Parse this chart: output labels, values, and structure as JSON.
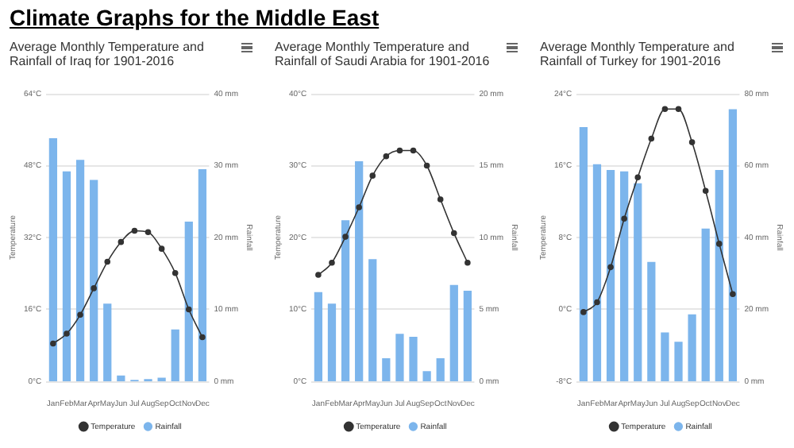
{
  "chart_data": [
    {
      "type": "other",
      "title": "Climate Graphs for the Middle East"
    },
    {
      "type": "bar",
      "title": "Average Monthly Temperature and Rainfall of Iraq for 1901-2016",
      "ylabel": "Temperature",
      "y2label": "Rainfall",
      "categories": [
        "Jan",
        "Feb",
        "Mar",
        "Apr",
        "May",
        "Jun",
        "Jul",
        "Aug",
        "Sep",
        "Oct",
        "Nov",
        "Dec"
      ],
      "series": [
        {
          "name": "Rainfall",
          "type": "bar",
          "axis": "y2",
          "color": "#7cb5ec",
          "values": [
            33.8,
            29.2,
            30.8,
            28,
            10.8,
            0.8,
            0.2,
            0.3,
            0.5,
            7.2,
            22.2,
            29.5
          ]
        },
        {
          "name": "Temperature",
          "type": "line",
          "axis": "y",
          "color": "#333333",
          "values": [
            8.4,
            10.6,
            14.8,
            20.7,
            26.6,
            31,
            33.5,
            33.2,
            29.5,
            24.1,
            16,
            9.8
          ]
        }
      ],
      "ylim": [
        0,
        64
      ],
      "yticks": [
        {
          "value": 0,
          "label": "0°C"
        },
        {
          "value": 16,
          "label": "16°C"
        },
        {
          "value": 32,
          "label": "32°C"
        },
        {
          "value": 48,
          "label": "48°C"
        },
        {
          "value": 64,
          "label": "64°C"
        }
      ],
      "y2lim": [
        0,
        40
      ],
      "y2ticks": [
        {
          "value": 0,
          "label": "0 mm"
        },
        {
          "value": 10,
          "label": "10 mm"
        },
        {
          "value": 20,
          "label": "20 mm"
        },
        {
          "value": 30,
          "label": "30 mm"
        },
        {
          "value": 40,
          "label": "40 mm"
        }
      ],
      "grid": "y",
      "legend": "bottom",
      "marker": "circle"
    },
    {
      "type": "bar",
      "title": "Average Monthly Temperature and Rainfall of Saudi Arabia for 1901-2016",
      "ylabel": "Temperature",
      "y2label": "Rainfall",
      "categories": [
        "Jan",
        "Feb",
        "Mar",
        "Apr",
        "May",
        "Jun",
        "Jul",
        "Aug",
        "Sep",
        "Oct",
        "Nov",
        "Dec"
      ],
      "series": [
        {
          "name": "Rainfall",
          "type": "bar",
          "axis": "y2",
          "color": "#7cb5ec",
          "values": [
            6.2,
            5.4,
            11.2,
            15.3,
            8.5,
            1.6,
            3.3,
            3.1,
            0.7,
            1.6,
            6.7,
            6.3
          ]
        },
        {
          "name": "Temperature",
          "type": "line",
          "axis": "y",
          "color": "#333333",
          "values": [
            14.8,
            16.5,
            20.1,
            24.2,
            28.6,
            31.3,
            32.1,
            32.1,
            30,
            25.3,
            20.6,
            16.5
          ]
        }
      ],
      "ylim": [
        0,
        40
      ],
      "yticks": [
        {
          "value": 0,
          "label": "0°C"
        },
        {
          "value": 10,
          "label": "10°C"
        },
        {
          "value": 20,
          "label": "20°C"
        },
        {
          "value": 30,
          "label": "30°C"
        },
        {
          "value": 40,
          "label": "40°C"
        }
      ],
      "y2lim": [
        0,
        20
      ],
      "y2ticks": [
        {
          "value": 0,
          "label": "0 mm"
        },
        {
          "value": 5,
          "label": "5 mm"
        },
        {
          "value": 10,
          "label": "10 mm"
        },
        {
          "value": 15,
          "label": "15 mm"
        },
        {
          "value": 20,
          "label": "20 mm"
        }
      ],
      "grid": "y",
      "legend": "bottom",
      "marker": "circle"
    },
    {
      "type": "bar",
      "title": "Average Monthly Temperature and Rainfall of Turkey for 1901-2016",
      "ylabel": "Temperature",
      "y2label": "Rainfall",
      "categories": [
        "Jan",
        "Feb",
        "Mar",
        "Apr",
        "May",
        "Jun",
        "Jul",
        "Aug",
        "Sep",
        "Oct",
        "Nov",
        "Dec"
      ],
      "series": [
        {
          "name": "Rainfall",
          "type": "bar",
          "axis": "y2",
          "color": "#7cb5ec",
          "values": [
            70.7,
            60.4,
            58.8,
            58.4,
            55.1,
            33.2,
            13.6,
            11,
            18.6,
            42.5,
            58.8,
            75.7
          ]
        },
        {
          "name": "Temperature",
          "type": "line",
          "axis": "y",
          "color": "#333333",
          "values": [
            -0.3,
            0.8,
            4.7,
            10.1,
            14.7,
            19,
            22.3,
            22.3,
            18.6,
            13.2,
            7.3,
            1.7
          ]
        }
      ],
      "ylim": [
        -8,
        24
      ],
      "yticks": [
        {
          "value": -8,
          "label": "-8°C"
        },
        {
          "value": 0,
          "label": "0°C"
        },
        {
          "value": 8,
          "label": "8°C"
        },
        {
          "value": 16,
          "label": "16°C"
        },
        {
          "value": 24,
          "label": "24°C"
        }
      ],
      "y2lim": [
        0,
        80
      ],
      "y2ticks": [
        {
          "value": 0,
          "label": "0 mm"
        },
        {
          "value": 20,
          "label": "20 mm"
        },
        {
          "value": 40,
          "label": "40 mm"
        },
        {
          "value": 60,
          "label": "60 mm"
        },
        {
          "value": 80,
          "label": "80 mm"
        }
      ],
      "grid": "y",
      "legend": "bottom",
      "marker": "circle"
    }
  ]
}
